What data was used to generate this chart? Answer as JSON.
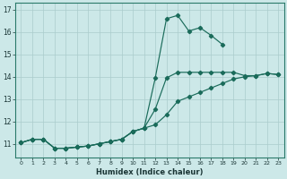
{
  "xlabel": "Humidex (Indice chaleur)",
  "bg_color": "#cce8e8",
  "grid_color": "#aacccc",
  "line_color": "#1a6b5a",
  "xlim": [
    -0.5,
    23.5
  ],
  "ylim": [
    10.4,
    17.3
  ],
  "xticks": [
    0,
    1,
    2,
    3,
    4,
    5,
    6,
    7,
    8,
    9,
    10,
    11,
    12,
    13,
    14,
    15,
    16,
    17,
    18,
    19,
    20,
    21,
    22,
    23
  ],
  "yticks": [
    11,
    12,
    13,
    14,
    15,
    16,
    17
  ],
  "line1_x": [
    0,
    1,
    2,
    3,
    4,
    5,
    6,
    7,
    8,
    9,
    10,
    11,
    12,
    13,
    14,
    15,
    16,
    17,
    18,
    19,
    20,
    21,
    22,
    23
  ],
  "line1_y": [
    11.05,
    11.2,
    11.2,
    10.8,
    10.8,
    10.85,
    10.9,
    11.0,
    11.1,
    11.2,
    11.55,
    11.7,
    11.85,
    12.3,
    12.9,
    13.1,
    13.3,
    13.5,
    13.7,
    13.9,
    14.0,
    14.05,
    14.15,
    14.1
  ],
  "line2_x": [
    0,
    1,
    2,
    3,
    4,
    5,
    6,
    7,
    8,
    9,
    10,
    11,
    12,
    13,
    14,
    15,
    16,
    17,
    18,
    19,
    20,
    21,
    22,
    23
  ],
  "line2_y": [
    11.05,
    11.2,
    11.2,
    10.8,
    10.8,
    10.85,
    10.9,
    11.0,
    11.1,
    11.2,
    11.55,
    11.7,
    12.55,
    13.95,
    14.2,
    14.2,
    14.2,
    14.2,
    14.2,
    14.2,
    14.05,
    14.05,
    14.15,
    14.1
  ],
  "line3_x": [
    0,
    1,
    2,
    3,
    4,
    5,
    6,
    7,
    8,
    9,
    10,
    11,
    12,
    13,
    14,
    15,
    16,
    17,
    18,
    19,
    20,
    21,
    22,
    23
  ],
  "line3_y": [
    11.05,
    11.2,
    11.2,
    10.8,
    10.8,
    10.85,
    10.9,
    11.0,
    11.1,
    11.2,
    11.55,
    11.7,
    13.95,
    16.6,
    16.75,
    16.05,
    16.2,
    15.85,
    15.45,
    null,
    null,
    null,
    null,
    null
  ]
}
